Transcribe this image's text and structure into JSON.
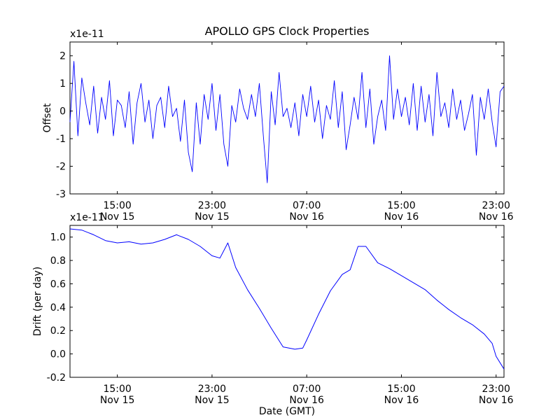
{
  "chart_data": [
    {
      "type": "line",
      "title": "APOLLO GPS Clock Properties",
      "xlabel": "",
      "ylabel": "Offset",
      "y_multiplier": "x1e-11",
      "xlim": [
        "Nov 15 11:00",
        "Nov 16 23:40"
      ],
      "ylim": [
        -3,
        2.5
      ],
      "yticks": [
        "-3",
        "-2",
        "-1",
        "0",
        "1",
        "2"
      ],
      "xticks": [
        {
          "time": "15:00",
          "date": "Nov 15"
        },
        {
          "time": "23:00",
          "date": "Nov 15"
        },
        {
          "time": "07:00",
          "date": "Nov 16"
        },
        {
          "time": "15:00",
          "date": "Nov 16"
        },
        {
          "time": "23:00",
          "date": "Nov 16"
        }
      ],
      "grid": false,
      "color": "#0000ff",
      "series": [
        {
          "x": [
            "Nov 15 11:00",
            "Nov 15 11:20",
            "Nov 15 11:40",
            "Nov 15 12:00",
            "Nov 15 12:20",
            "Nov 15 12:40",
            "Nov 15 13:00",
            "Nov 15 13:20",
            "Nov 15 13:40",
            "Nov 15 14:00",
            "Nov 15 14:20",
            "Nov 15 14:40",
            "Nov 15 15:00",
            "Nov 15 15:20",
            "Nov 15 15:40",
            "Nov 15 16:00",
            "Nov 15 16:20",
            "Nov 15 16:40",
            "Nov 15 17:00",
            "Nov 15 17:20",
            "Nov 15 17:40",
            "Nov 15 18:00",
            "Nov 15 18:20",
            "Nov 15 18:40",
            "Nov 15 19:00",
            "Nov 15 19:20",
            "Nov 15 19:40",
            "Nov 15 20:00",
            "Nov 15 20:20",
            "Nov 15 20:40",
            "Nov 15 21:00",
            "Nov 15 21:20",
            "Nov 15 21:40",
            "Nov 15 22:00",
            "Nov 15 22:20",
            "Nov 15 22:40",
            "Nov 15 23:00",
            "Nov 15 23:20",
            "Nov 15 23:40",
            "Nov 16 00:00",
            "Nov 16 00:20",
            "Nov 16 00:40",
            "Nov 16 01:00",
            "Nov 16 01:20",
            "Nov 16 01:40",
            "Nov 16 02:00",
            "Nov 16 02:20",
            "Nov 16 02:40",
            "Nov 16 03:00",
            "Nov 16 03:20",
            "Nov 16 03:40",
            "Nov 16 04:00",
            "Nov 16 04:20",
            "Nov 16 04:40",
            "Nov 16 05:00",
            "Nov 16 05:20",
            "Nov 16 05:40",
            "Nov 16 06:00",
            "Nov 16 06:20",
            "Nov 16 06:40",
            "Nov 16 07:00",
            "Nov 16 07:20",
            "Nov 16 07:40",
            "Nov 16 08:00",
            "Nov 16 08:20",
            "Nov 16 08:40",
            "Nov 16 09:00",
            "Nov 16 09:20",
            "Nov 16 09:40",
            "Nov 16 10:00",
            "Nov 16 10:20",
            "Nov 16 10:40",
            "Nov 16 11:00",
            "Nov 16 11:20",
            "Nov 16 11:40",
            "Nov 16 12:00",
            "Nov 16 12:20",
            "Nov 16 12:40",
            "Nov 16 13:00",
            "Nov 16 13:20",
            "Nov 16 13:40",
            "Nov 16 14:00",
            "Nov 16 14:20",
            "Nov 16 14:40",
            "Nov 16 15:00",
            "Nov 16 15:20",
            "Nov 16 15:40",
            "Nov 16 16:00",
            "Nov 16 16:20",
            "Nov 16 16:40",
            "Nov 16 17:00",
            "Nov 16 17:20",
            "Nov 16 17:40",
            "Nov 16 18:00",
            "Nov 16 18:20",
            "Nov 16 18:40",
            "Nov 16 19:00",
            "Nov 16 19:20",
            "Nov 16 19:40",
            "Nov 16 20:00",
            "Nov 16 20:20",
            "Nov 16 20:40",
            "Nov 16 21:00",
            "Nov 16 21:20",
            "Nov 16 21:40",
            "Nov 16 22:00",
            "Nov 16 22:20",
            "Nov 16 22:40",
            "Nov 16 23:00",
            "Nov 16 23:20",
            "Nov 16 23:40"
          ],
          "y": [
            -0.4,
            1.8,
            -0.9,
            1.2,
            0.3,
            -0.5,
            0.9,
            -0.8,
            0.5,
            -0.3,
            1.1,
            -0.9,
            0.4,
            0.2,
            -0.6,
            0.7,
            -1.2,
            0.3,
            1.0,
            -0.4,
            0.4,
            -1.0,
            0.2,
            0.5,
            -0.6,
            0.9,
            -0.2,
            0.1,
            -1.1,
            0.4,
            -1.5,
            -2.2,
            0.3,
            -1.2,
            0.6,
            -0.3,
            1.0,
            -0.7,
            0.6,
            -1.2,
            -2.0,
            0.2,
            -0.4,
            0.8,
            0.1,
            -0.3,
            0.6,
            -0.2,
            1.0,
            -0.9,
            -2.6,
            0.7,
            -0.5,
            1.4,
            -0.2,
            0.1,
            -0.6,
            0.3,
            -0.9,
            0.6,
            -0.2,
            0.9,
            -0.4,
            0.4,
            -1.0,
            0.2,
            -0.3,
            1.1,
            -0.6,
            0.7,
            -1.4,
            -0.5,
            0.5,
            -0.3,
            1.4,
            -0.6,
            0.8,
            -1.2,
            -0.2,
            0.4,
            -0.7,
            2.0,
            -0.3,
            0.8,
            -0.2,
            0.5,
            -0.5,
            1.0,
            -0.7,
            0.9,
            -0.4,
            0.6,
            -0.9,
            1.4,
            -0.2,
            0.3,
            -0.6,
            0.8,
            -0.3,
            0.4,
            -0.7,
            -0.1,
            0.6,
            -1.6,
            0.5,
            -0.3,
            0.8,
            -0.4,
            -1.3,
            0.7,
            0.9
          ]
        }
      ]
    },
    {
      "type": "line",
      "title": "",
      "xlabel": "Date (GMT)",
      "ylabel": "Drift (per day)",
      "y_multiplier": "x1e-11",
      "xlim": [
        "Nov 15 11:00",
        "Nov 16 23:40"
      ],
      "ylim": [
        -0.2,
        1.1
      ],
      "yticks": [
        "-0.2",
        "0.0",
        "0.2",
        "0.4",
        "0.6",
        "0.8",
        "1.0"
      ],
      "xticks": [
        {
          "time": "15:00",
          "date": "Nov 15"
        },
        {
          "time": "23:00",
          "date": "Nov 15"
        },
        {
          "time": "07:00",
          "date": "Nov 16"
        },
        {
          "time": "15:00",
          "date": "Nov 16"
        },
        {
          "time": "23:00",
          "date": "Nov 16"
        }
      ],
      "grid": false,
      "color": "#0000ff",
      "series": [
        {
          "x": [
            "Nov 15 11:00",
            "Nov 15 12:00",
            "Nov 15 13:00",
            "Nov 15 14:00",
            "Nov 15 15:00",
            "Nov 15 16:00",
            "Nov 15 17:00",
            "Nov 15 18:00",
            "Nov 15 19:00",
            "Nov 15 20:00",
            "Nov 15 21:00",
            "Nov 15 22:00",
            "Nov 15 23:00",
            "Nov 15 23:40",
            "Nov 16 00:20",
            "Nov 16 01:00",
            "Nov 16 02:00",
            "Nov 16 03:00",
            "Nov 16 04:00",
            "Nov 16 05:00",
            "Nov 16 06:00",
            "Nov 16 06:40",
            "Nov 16 07:00",
            "Nov 16 08:00",
            "Nov 16 09:00",
            "Nov 16 10:00",
            "Nov 16 10:40",
            "Nov 16 11:20",
            "Nov 16 12:00",
            "Nov 16 13:00",
            "Nov 16 14:00",
            "Nov 16 15:00",
            "Nov 16 16:00",
            "Nov 16 17:00",
            "Nov 16 18:00",
            "Nov 16 19:00",
            "Nov 16 20:00",
            "Nov 16 21:00",
            "Nov 16 22:00",
            "Nov 16 22:40",
            "Nov 16 23:00",
            "Nov 16 23:40"
          ],
          "y": [
            1.07,
            1.06,
            1.02,
            0.97,
            0.95,
            0.96,
            0.94,
            0.95,
            0.98,
            1.02,
            0.98,
            0.92,
            0.84,
            0.82,
            0.95,
            0.74,
            0.55,
            0.39,
            0.22,
            0.06,
            0.04,
            0.05,
            0.12,
            0.34,
            0.54,
            0.68,
            0.72,
            0.92,
            0.92,
            0.78,
            0.73,
            0.67,
            0.61,
            0.55,
            0.46,
            0.38,
            0.31,
            0.25,
            0.17,
            0.09,
            -0.02,
            -0.13
          ]
        }
      ]
    }
  ]
}
